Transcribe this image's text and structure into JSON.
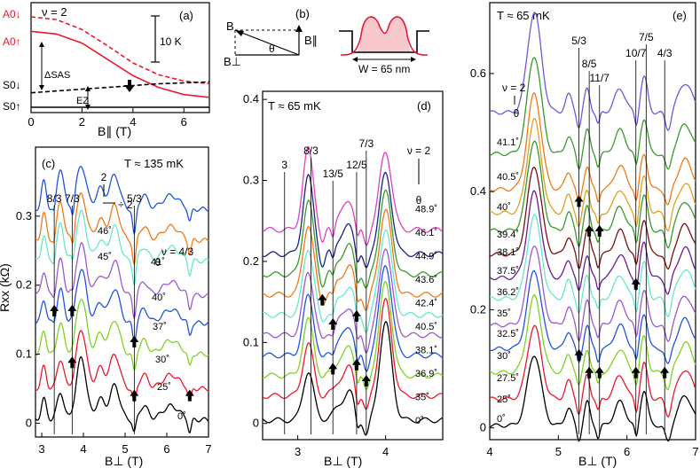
{
  "chart_data": [
    {
      "panel": "(a)",
      "type": "line",
      "title": "ν = 2",
      "xlabel": "B∥ (T)",
      "ylabel": "",
      "xlim": [
        0,
        7
      ],
      "x_ticks": [
        "0",
        "2",
        "4",
        "6"
      ],
      "level_labels": [
        "A0↓",
        "A0↑",
        "S0↓",
        "S0↑"
      ],
      "scale_bar_label": "10 K",
      "gap_labels": [
        "ΔSAS",
        "EZ"
      ],
      "series": [
        {
          "name": "A0↓",
          "style": "dashed",
          "color": "#e8192c",
          "x": [
            0,
            1,
            2,
            3,
            4,
            5,
            6,
            7
          ],
          "y": [
            1.0,
            0.97,
            0.86,
            0.68,
            0.49,
            0.36,
            0.29,
            0.26
          ]
        },
        {
          "name": "A0↑",
          "style": "solid",
          "color": "#e8192c",
          "x": [
            0,
            1,
            2,
            3,
            4,
            5,
            6,
            7
          ],
          "y": [
            0.84,
            0.81,
            0.71,
            0.53,
            0.35,
            0.22,
            0.14,
            0.11
          ]
        },
        {
          "name": "S0↓",
          "style": "dashed",
          "color": "#000000",
          "x": [
            0,
            1,
            2,
            3,
            4,
            5,
            6,
            7
          ],
          "y": [
            0.16,
            0.18,
            0.2,
            0.22,
            0.24,
            0.26,
            0.27,
            0.28
          ]
        },
        {
          "name": "S0↑",
          "style": "solid",
          "color": "#000000",
          "x": [
            0,
            7
          ],
          "y": [
            0.0,
            0.0
          ]
        }
      ],
      "arrow_at_x": 3.4
    },
    {
      "panel": "(b)",
      "type": "diagram",
      "vector_labels": [
        "B",
        "B∥",
        "B⊥",
        "θ"
      ],
      "well_width_label": "W = 65 nm"
    },
    {
      "panel": "(c)",
      "type": "line",
      "temperature": "T ≈ 135 mK",
      "xlabel": "B⊥ (T)",
      "ylabel": "Rxx (kΩ)",
      "xlim": [
        2.85,
        7.0
      ],
      "ylim": [
        -0.02,
        0.4
      ],
      "x_ticks": [
        "3",
        "4",
        "5",
        "6",
        "7"
      ],
      "y_ticks": [
        "0",
        "0.1",
        "0.2",
        "0.3"
      ],
      "fraction_labels": [
        "8/3",
        "7/3",
        "2",
        "5/3",
        "ν = 4/3"
      ],
      "scale_note": "÷ 2",
      "theta_header": "θ",
      "angles": [
        "0˚",
        "25˚",
        "30˚",
        "37˚",
        "40˚",
        "41˚",
        "45˚",
        "46˚"
      ],
      "offsets": [
        0.0,
        0.045,
        0.095,
        0.14,
        0.18,
        0.23,
        0.26,
        0.305
      ],
      "colors": [
        "#000000",
        "#e8192c",
        "#7ed321",
        "#2255dd",
        "#9b59d0",
        "#66e8cc",
        "#f07a18",
        "#2255dd"
      ]
    },
    {
      "panel": "(d)",
      "type": "line",
      "temperature": "T ≈ 65 mK",
      "xlabel": "B⊥ (T)",
      "ylabel": "",
      "xlim": [
        2.6,
        4.65
      ],
      "ylim": [
        -0.02,
        0.41
      ],
      "x_ticks": [
        "3",
        "4"
      ],
      "y_ticks": [
        "0",
        "0.1",
        "0.2",
        "0.3",
        "0.4"
      ],
      "fraction_labels": [
        "3",
        "8/3",
        "13/5",
        "12/5",
        "7/3",
        "ν = 2"
      ],
      "theta_header": "θ",
      "angles": [
        "0˚",
        "35˚",
        "36.9˚",
        "38.1˚",
        "40.5˚",
        "42.4˚",
        "43.6˚",
        "44.9˚",
        "46.1˚",
        "48.9˚"
      ],
      "offsets": [
        0.0,
        0.03,
        0.055,
        0.08,
        0.105,
        0.13,
        0.155,
        0.18,
        0.205,
        0.235
      ],
      "colors": [
        "#000000",
        "#e8192c",
        "#7ed321",
        "#2255dd",
        "#9b59d0",
        "#66e8cc",
        "#f07a18",
        "#3a9a2a",
        "#1a237e",
        "#e040c0"
      ]
    },
    {
      "panel": "(e)",
      "type": "line",
      "temperature": "T ≈ 65 mK",
      "xlabel": "B⊥ (T)",
      "ylabel": "",
      "xlim": [
        4.0,
        7.0
      ],
      "ylim": [
        -0.02,
        0.72
      ],
      "x_ticks": [
        "4",
        "5",
        "6",
        "7"
      ],
      "y_ticks": [
        "0",
        "0.2",
        "0.4",
        "0.6"
      ],
      "fraction_labels": [
        "ν = 2",
        "5/3",
        "8/5",
        "11/7",
        "10/7",
        "7/5",
        "4/3"
      ],
      "theta_header": "θ",
      "angles": [
        "0˚",
        "25˚",
        "27.5˚",
        "30˚",
        "32.5˚",
        "35˚",
        "36.2˚",
        "37.5˚",
        "38.1˚",
        "39.4˚",
        "40˚",
        "40.5˚",
        "41.1˚"
      ],
      "offsets": [
        0.0,
        0.045,
        0.09,
        0.13,
        0.17,
        0.215,
        0.25,
        0.29,
        0.33,
        0.36,
        0.4,
        0.46,
        0.53
      ],
      "colors": [
        "#000000",
        "#e8192c",
        "#7ed321",
        "#2255dd",
        "#9b59d0",
        "#66e8cc",
        "#6a1b9a",
        "#7b1010",
        "#3a9a2a",
        "#e0a020",
        "#f07a18",
        "#3a9a2a",
        "#6a5bd8"
      ]
    }
  ]
}
